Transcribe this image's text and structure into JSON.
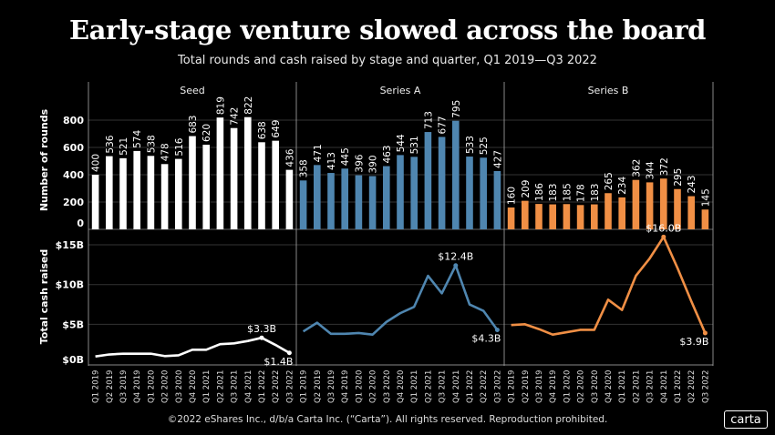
{
  "title": "Early-stage venture slowed across the board",
  "subtitle": "Total rounds and cash raised by stage and quarter, Q1 2019—Q3 2022",
  "footer": "©2022 eShares Inc., d/b/a Carta Inc. (“Carta”). All rights reserved. Reproduction prohibited.",
  "logo": "carta",
  "chart_data": {
    "type": "bar+line",
    "categories": [
      "Q1 2019",
      "Q2 2019",
      "Q3 2019",
      "Q4 2019",
      "Q1 2020",
      "Q2 2020",
      "Q3 2020",
      "Q4 2020",
      "Q1 2021",
      "Q2 2021",
      "Q3 2021",
      "Q4 2021",
      "Q1 2022",
      "Q2 2022",
      "Q3 2022"
    ],
    "rounds_axis": {
      "label": "Number of rounds",
      "ticks": [
        0,
        200,
        400,
        600,
        800
      ],
      "ylim": [
        0,
        840
      ]
    },
    "cash_axis": {
      "label": "Total cash raised",
      "ticks": [
        0,
        5,
        10,
        15
      ],
      "tick_labels": [
        "$0B",
        "$5B",
        "$10B",
        "$15B"
      ],
      "ylim": [
        0,
        15
      ],
      "unit": "billion USD"
    },
    "grid": true,
    "panels": [
      {
        "name": "Seed",
        "color": "#ffffff",
        "rounds": [
          400,
          536,
          521,
          574,
          538,
          478,
          516,
          683,
          620,
          819,
          742,
          822,
          638,
          649,
          436
        ],
        "cash": [
          0.95,
          1.2,
          1.3,
          1.3,
          1.3,
          1.0,
          1.1,
          1.8,
          1.8,
          2.5,
          2.6,
          2.9,
          3.3,
          2.4,
          1.4
        ],
        "annotations": [
          {
            "index": 12,
            "text": "$3.3B"
          },
          {
            "index": 14,
            "text": "$1.4B"
          }
        ]
      },
      {
        "name": "Series A",
        "color": "#4f86b0",
        "rounds": [
          358,
          471,
          413,
          445,
          396,
          390,
          463,
          544,
          531,
          713,
          677,
          795,
          533,
          525,
          427
        ],
        "cash": [
          4.1,
          5.2,
          3.8,
          3.8,
          3.9,
          3.7,
          5.3,
          6.4,
          7.2,
          11.1,
          8.9,
          12.4,
          7.5,
          6.7,
          4.3
        ],
        "annotations": [
          {
            "index": 11,
            "text": "$12.4B"
          },
          {
            "index": 14,
            "text": "$4.3B"
          }
        ]
      },
      {
        "name": "Series B",
        "color": "#f08f45",
        "rounds": [
          160,
          209,
          186,
          183,
          185,
          178,
          183,
          265,
          234,
          362,
          344,
          372,
          295,
          243,
          145
        ],
        "cash": [
          4.9,
          5.0,
          4.4,
          3.7,
          4.0,
          4.3,
          4.3,
          8.1,
          6.8,
          11.1,
          13.3,
          16.0,
          12.1,
          7.9,
          3.9
        ],
        "annotations": [
          {
            "index": 11,
            "text": "$16.0B"
          },
          {
            "index": 14,
            "text": "$3.9B"
          }
        ]
      }
    ]
  }
}
